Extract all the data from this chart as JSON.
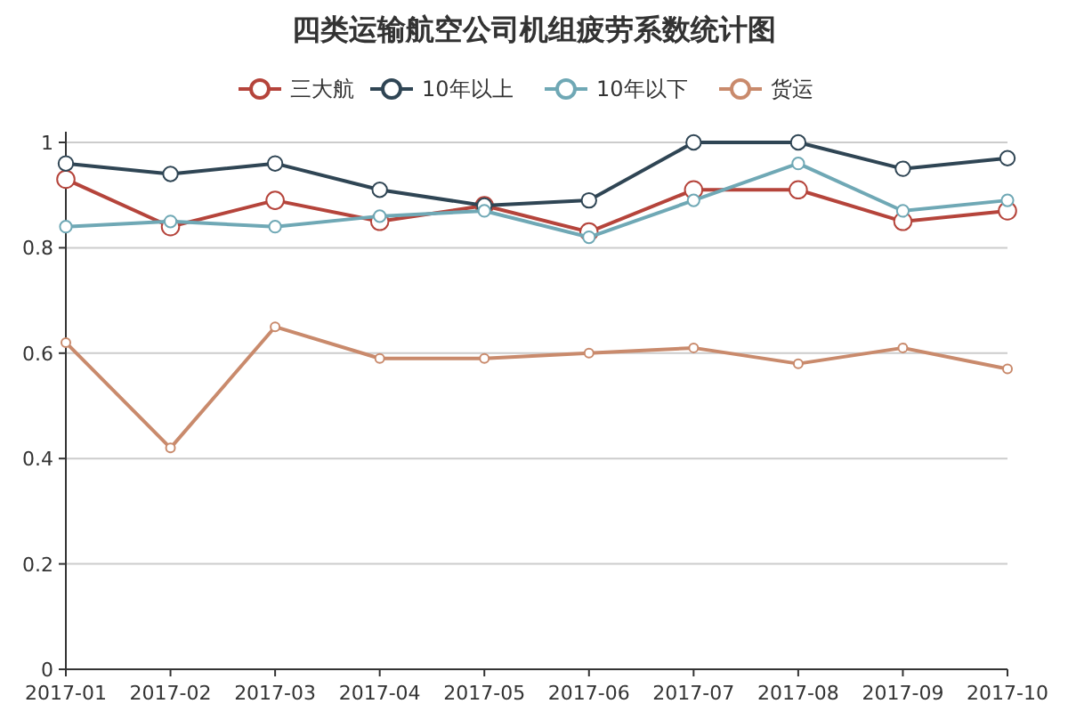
{
  "chart_data": {
    "type": "line",
    "title": "四类运输航空公司机组疲劳系数统计图",
    "categories": [
      "2017-01",
      "2017-02",
      "2017-03",
      "2017-04",
      "2017-05",
      "2017-06",
      "2017-07",
      "2017-08",
      "2017-09",
      "2017-10"
    ],
    "series": [
      {
        "name": "三大航",
        "color": "#b5443b",
        "values": [
          0.93,
          0.84,
          0.89,
          0.85,
          0.88,
          0.83,
          0.91,
          0.91,
          0.85,
          0.87
        ]
      },
      {
        "name": "10年以上",
        "color": "#2f4554",
        "values": [
          0.96,
          0.94,
          0.96,
          0.91,
          0.88,
          0.89,
          1.0,
          1.0,
          0.95,
          0.97
        ]
      },
      {
        "name": "10年以下",
        "color": "#6fa8b5",
        "values": [
          0.84,
          0.85,
          0.84,
          0.86,
          0.87,
          0.82,
          0.89,
          0.96,
          0.87,
          0.89
        ]
      },
      {
        "name": "货运",
        "color": "#c98a6c",
        "values": [
          0.62,
          0.42,
          0.65,
          0.59,
          0.59,
          0.6,
          0.61,
          0.58,
          0.61,
          0.57
        ]
      }
    ],
    "ylim": [
      0,
      1
    ],
    "yticks": [
      0,
      0.2,
      0.4,
      0.6,
      0.8,
      1
    ],
    "grid": "y",
    "legend": "top",
    "marker": "circle",
    "line_style": "solid"
  }
}
